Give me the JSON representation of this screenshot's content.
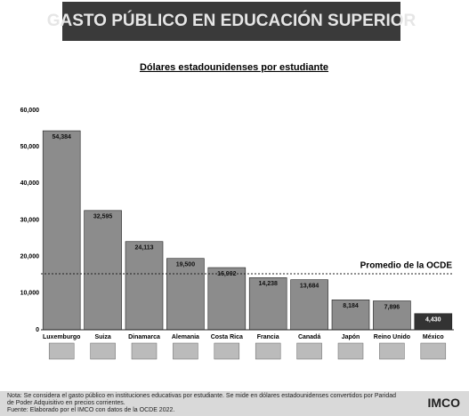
{
  "header": {
    "title": "GASTO PÚBLICO EN EDUCACIÓN SUPERIOR"
  },
  "chart_data": {
    "type": "bar",
    "title": "Dólares estadounidenses por estudiante",
    "categories": [
      "Luxemburgo",
      "Suiza",
      "Dinamarca",
      "Alemania",
      "Costa Rica",
      "Francia",
      "Canadá",
      "Japón",
      "Reino Unido",
      "México"
    ],
    "values": [
      54384,
      32595,
      24113,
      19500,
      16992,
      14238,
      13684,
      8184,
      7896,
      4430
    ],
    "value_labels": [
      "54,384",
      "32,595",
      "24,113",
      "19,500",
      "16,992",
      "14,238",
      "13,684",
      "8,184",
      "7,896",
      "4,430"
    ],
    "colors": [
      "#8c8c8c",
      "#8c8c8c",
      "#8c8c8c",
      "#8c8c8c",
      "#8c8c8c",
      "#8c8c8c",
      "#8c8c8c",
      "#8c8c8c",
      "#8c8c8c",
      "#333333"
    ],
    "ylim": [
      0,
      60000
    ],
    "yticks": [
      0,
      {
        "value": 10000,
        "label": "10,000"
      },
      {
        "value": 20000,
        "label": "20,000"
      },
      {
        "value": 30000,
        "label": "30,000"
      },
      {
        "value": 40000,
        "label": "40,000"
      },
      {
        "value": 50000,
        "label": "50,000"
      },
      {
        "value": 60000,
        "label": "60,000"
      }
    ],
    "grid": false,
    "reference_line": {
      "value": 15300,
      "label": "Promedio de la OCDE"
    }
  },
  "footer": {
    "note": "Nota: Se considera el gasto público en instituciones educativas por estudiante. Se mide en dólares estadounidenses convertidos por Paridad de Poder Adquisitivo en precios corrientes.",
    "source": "Fuente: Elaborado por el IMCO con datos de la OCDE 2022.",
    "logo": "IMCO"
  }
}
